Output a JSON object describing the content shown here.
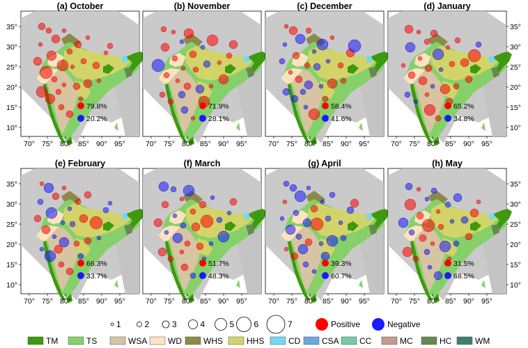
{
  "figure": {
    "panels": [
      {
        "title": "(a) October",
        "positive_pct": "79.8%",
        "negative_pct": "20.2%"
      },
      {
        "title": "(b) November",
        "positive_pct": "71.9%",
        "negative_pct": "28.1%"
      },
      {
        "title": "(c) December",
        "positive_pct": "58.4%",
        "negative_pct": "41.6%"
      },
      {
        "title": "(d) January",
        "positive_pct": "65.2%",
        "negative_pct": "34.8%"
      },
      {
        "title": "(e) February",
        "positive_pct": "66.3%",
        "negative_pct": "33.7%"
      },
      {
        "title": "(f) March",
        "positive_pct": "51.7%",
        "negative_pct": "48.3%"
      },
      {
        "title": "(g) April",
        "positive_pct": "39.3%",
        "negative_pct": "60.7%"
      },
      {
        "title": "(h) May",
        "positive_pct": "31.5%",
        "negative_pct": "68.5%"
      }
    ],
    "lon_ticks": [
      "70°",
      "75°",
      "80°",
      "85°",
      "90°",
      "95°"
    ],
    "lat_ticks": [
      "35°",
      "30°",
      "25°",
      "20°",
      "15°",
      "10°"
    ]
  },
  "legend": {
    "size_labels": [
      "1",
      "2",
      "3",
      "4",
      "5",
      "6",
      "7"
    ],
    "positive_label": "Positive",
    "negative_label": "Negative",
    "zones": [
      {
        "code": "TM",
        "color": "#3d9a0e"
      },
      {
        "code": "TS",
        "color": "#86d06a"
      },
      {
        "code": "WSA",
        "color": "#d6c4a2"
      },
      {
        "code": "WD",
        "color": "#fde3c0"
      },
      {
        "code": "WHS",
        "color": "#8c8a48"
      },
      {
        "code": "HHS",
        "color": "#d2d46a"
      },
      {
        "code": "CD",
        "color": "#74d8f4"
      },
      {
        "code": "CSA",
        "color": "#6da6dc"
      },
      {
        "code": "CC",
        "color": "#74cba6"
      },
      {
        "code": "MC",
        "color": "#c49a8e"
      },
      {
        "code": "HC",
        "color": "#688850"
      },
      {
        "code": "WM",
        "color": "#3e806e"
      }
    ]
  },
  "colors": {
    "positive": "#ff0000",
    "negative": "#1a1aff",
    "background_land": "#c4c4c4"
  }
}
